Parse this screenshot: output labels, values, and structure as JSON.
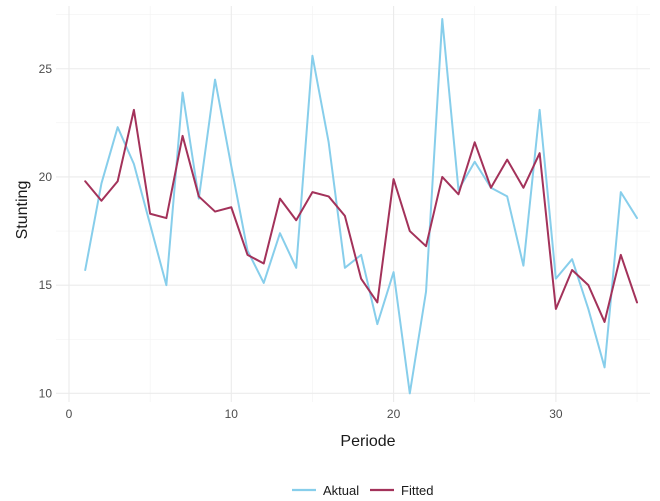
{
  "chart_data": {
    "type": "line",
    "xlabel": "Periode",
    "ylabel": "Stunting",
    "xlim": [
      -0.8,
      35.8
    ],
    "ylim": [
      9.6,
      27.9
    ],
    "x_ticks": [
      0,
      10,
      20,
      30
    ],
    "y_ticks": [
      10,
      15,
      20,
      25
    ],
    "grid": true,
    "legend_position": "bottom",
    "x": [
      1,
      2,
      3,
      4,
      5,
      6,
      7,
      8,
      9,
      10,
      11,
      12,
      13,
      14,
      15,
      16,
      17,
      18,
      19,
      20,
      21,
      22,
      23,
      24,
      25,
      26,
      27,
      28,
      29,
      30,
      31,
      32,
      33,
      34,
      35
    ],
    "series": [
      {
        "name": "Aktual",
        "color": "#87CEEB",
        "values": [
          15.7,
          19.7,
          22.3,
          20.6,
          17.8,
          15.0,
          23.9,
          19.0,
          24.5,
          20.5,
          16.6,
          15.1,
          17.4,
          15.8,
          25.6,
          21.6,
          15.8,
          16.4,
          13.2,
          15.6,
          10.0,
          14.7,
          27.3,
          19.4,
          20.7,
          19.5,
          19.1,
          15.9,
          23.1,
          15.3,
          16.2,
          13.9,
          11.2,
          19.3,
          18.1
        ]
      },
      {
        "name": "Fitted",
        "color": "#A3325A",
        "values": [
          19.8,
          18.9,
          19.8,
          23.1,
          18.3,
          18.1,
          21.9,
          19.1,
          18.4,
          18.6,
          16.4,
          16.0,
          19.0,
          18.0,
          19.3,
          19.1,
          18.2,
          15.3,
          14.2,
          19.9,
          17.5,
          16.8,
          20.0,
          19.2,
          21.6,
          19.5,
          20.8,
          19.5,
          21.1,
          13.9,
          15.7,
          15.0,
          13.3,
          16.4,
          14.2
        ]
      }
    ]
  }
}
